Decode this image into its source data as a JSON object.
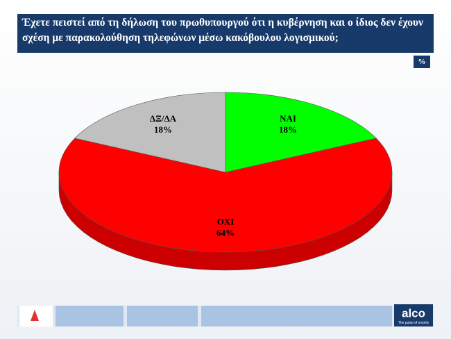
{
  "chart_data": {
    "type": "pie3d",
    "title": "Έχετε  πειστεί από τη δήλωση του πρωθυπουργού ότι η κυβέρνηση και ο ίδιος δεν έχουν σχέση με παρακολούθηση τηλεφώνων μέσω κακόβουλου λογισμικού;",
    "unit_label": "%",
    "categories": [
      "ΝΑΙ",
      "ΟΧΙ",
      "ΔΞ/ΔΑ"
    ],
    "values": [
      18,
      64,
      18
    ],
    "value_labels": [
      "18%",
      "64%",
      "18%"
    ],
    "colors": [
      "#00ff00",
      "#ff0000",
      "#c0c0c0"
    ],
    "logo": {
      "name": "alco",
      "tagline": "The pulse of society"
    }
  }
}
